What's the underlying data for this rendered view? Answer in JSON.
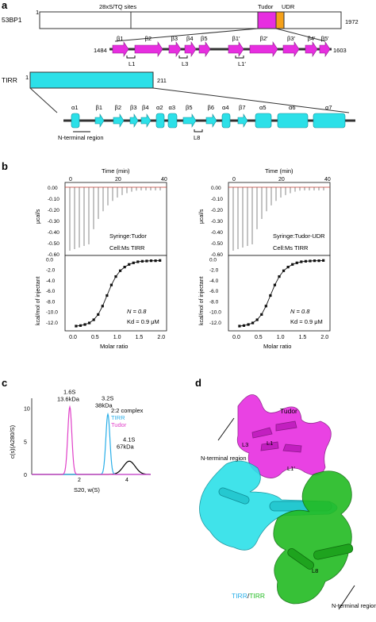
{
  "panels": {
    "a": "a",
    "b": "b",
    "c": "c",
    "d": "d"
  },
  "panel_a": {
    "bp1": {
      "name": "53BP1",
      "start": "1",
      "end": "1972",
      "sites": "28xS/TQ sites",
      "tudor": "Tudor",
      "udr": "UDR"
    },
    "zoom1": {
      "start": "1484",
      "end": "1603",
      "strands": [
        "β1",
        "β2",
        "β3",
        "β4",
        "β5",
        "β1′",
        "β2′",
        "β3′",
        "β4′",
        "β5′"
      ],
      "loops": [
        "L1",
        "L3",
        "L1′"
      ]
    },
    "tirr": {
      "name": "TIRR",
      "start": "1",
      "end": "211"
    },
    "zoom2": {
      "labels": [
        "α1",
        "β1",
        "β2",
        "β3",
        "β4",
        "α2",
        "α3",
        "β5",
        "β6",
        "α4",
        "β7",
        "α5",
        "α6",
        "α7"
      ],
      "nterm": "N-terminal region",
      "loop": "L8"
    }
  },
  "panel_b": {
    "time_label": "Time (min)",
    "time_ticks": [
      "0",
      "20",
      "40"
    ],
    "y_top_label": "μcal/s",
    "y_top_ticks": [
      "0.00",
      "-0.10",
      "-0.20",
      "-0.30",
      "-0.40",
      "-0.50",
      "-0.60"
    ],
    "y_bot_label": "kcal/mol of injectant",
    "y_bot_ticks": [
      "0.0",
      "-2.0",
      "-4.0",
      "-6.0",
      "-8.0",
      "-10.0",
      "-12.0"
    ],
    "x_label": "Molar ratio",
    "x_ticks": [
      "0.0",
      "0.5",
      "1.0",
      "1.5",
      "2.0"
    ],
    "left": {
      "syringe": "Syringe:Tudor",
      "cell": "Cell:Ms TIRR",
      "n": "N = 0.8",
      "kd": "Kd = 0.9 μM"
    },
    "right": {
      "syringe": "Syringe:Tudor-UDR",
      "cell": "Cell:Ms TIRR",
      "n": "N = 0.8",
      "kd": "Kd = 0.9 μM"
    }
  },
  "chart_data": [
    {
      "type": "line",
      "title": "",
      "xlabel": "Molar ratio",
      "ylabel": "kcal/mol of injectant",
      "xlim": [
        -0.2,
        2.1
      ],
      "ylim": [
        -13.5,
        0.8
      ],
      "series": [
        {
          "name": "",
          "x": [
            0.05,
            0.15,
            0.25,
            0.35,
            0.45,
            0.55,
            0.65,
            0.75,
            0.85,
            0.95,
            1.05,
            1.15,
            1.25,
            1.35,
            1.45,
            1.55,
            1.65,
            1.75,
            1.85,
            1.95
          ],
          "values": [
            -12.6,
            -12.5,
            -12.3,
            -12.0,
            -11.4,
            -10.4,
            -8.8,
            -6.8,
            -4.8,
            -3.2,
            -2.1,
            -1.4,
            -0.9,
            -0.6,
            -0.4,
            -0.3,
            -0.25,
            -0.2,
            -0.2,
            -0.15
          ]
        }
      ]
    },
    {
      "type": "line",
      "title": "",
      "xlabel": "Molar ratio",
      "ylabel": "",
      "xlim": [
        -0.2,
        2.1
      ],
      "ylim": [
        -13.5,
        0.8
      ],
      "series": [
        {
          "name": "",
          "x": [
            0.05,
            0.15,
            0.25,
            0.35,
            0.45,
            0.55,
            0.65,
            0.75,
            0.85,
            0.95,
            1.05,
            1.15,
            1.25,
            1.35,
            1.45,
            1.55,
            1.65,
            1.75,
            1.85,
            1.95
          ],
          "values": [
            -12.6,
            -12.5,
            -12.3,
            -12.0,
            -11.4,
            -10.4,
            -8.8,
            -6.8,
            -4.8,
            -3.2,
            -2.1,
            -1.4,
            -0.9,
            -0.6,
            -0.4,
            -0.3,
            -0.25,
            -0.2,
            -0.2,
            -0.15
          ]
        }
      ]
    },
    {
      "type": "line",
      "title": "",
      "xlabel": "S20, w(S)",
      "ylabel": "c(s)(A280/S)",
      "xlim": [
        0,
        5
      ],
      "ylim": [
        0,
        11.5
      ],
      "x_ticks": [
        "2",
        "4"
      ],
      "y_ticks": [
        "0",
        "5",
        "10"
      ],
      "series": [
        {
          "name": "2:2 complex",
          "color": "#000000",
          "peak_x": 4.1,
          "peak_y": 2.0
        },
        {
          "name": "TIRR",
          "color": "#29aee8",
          "peak_x": 3.2,
          "peak_y": 9.1
        },
        {
          "name": "Tudor",
          "color": "#e040c8",
          "peak_x": 1.6,
          "peak_y": 10.2
        }
      ],
      "annotations": [
        {
          "s": "1.6S",
          "mw": "13.6kDa"
        },
        {
          "s": "3.2S",
          "mw": "38kDa"
        },
        {
          "s": "4.1S",
          "mw": "67kDa"
        }
      ]
    }
  ],
  "panel_d": {
    "tudor": "Tudor",
    "nterm1": "N-terminal region",
    "nterm2": "N-terminal region",
    "loops": [
      "L3",
      "L1",
      "L1′",
      "L8"
    ],
    "tirr1": "TIRR",
    "sep": "/",
    "tirr2": "TIRR"
  },
  "colors": {
    "magenta": "#e72ee0",
    "cyan": "#2ce0e8",
    "orange": "#f5a11a",
    "green": "#22bb22",
    "tirr_blue": "#29aee8"
  }
}
